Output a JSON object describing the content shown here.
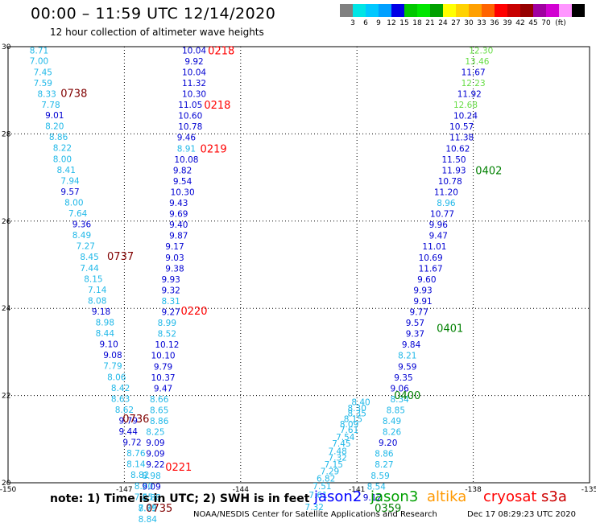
{
  "header": {
    "title": "00:00 – 11:59 UTC 12/14/2020",
    "subtitle": "12 hour collection of altimeter wave heights"
  },
  "colorbar": {
    "colors": [
      "#808080",
      "#00e5e5",
      "#00c8ff",
      "#00a0ff",
      "#0000e6",
      "#00c800",
      "#00e600",
      "#00a000",
      "#ffff00",
      "#ffd200",
      "#ffa000",
      "#ff6400",
      "#ff0000",
      "#c80000",
      "#960000",
      "#a000a0",
      "#d200d2",
      "#ff96ff",
      "#000000"
    ],
    "ticks": [
      "3",
      "6",
      "9",
      "12",
      "15",
      "18",
      "21",
      "24",
      "27",
      "30",
      "33",
      "36",
      "39",
      "42",
      "45",
      "70"
    ],
    "unit": "(ft)"
  },
  "footer": {
    "note": "note: 1) Time is in UTC; 2) SWH is in feet",
    "legend": [
      {
        "name": "jason2",
        "color": "#0000ff"
      },
      {
        "name": "jason3",
        "color": "#00a000"
      },
      {
        "name": "altika",
        "color": "#ff9900"
      },
      {
        "name": "cryosat",
        "color": "#ff0000"
      },
      {
        "name": "s3a",
        "color": "#cc0000"
      }
    ],
    "credit": "NOAA/NESDIS Center for Satellite Applications and Research",
    "timestamp": "Dec 17 08:29:23 UTC 2020"
  },
  "chart_data": {
    "type": "scatter",
    "title": "",
    "xlim": [
      -150,
      -135
    ],
    "ylim": [
      20,
      30
    ],
    "x_ticks": [
      "-150",
      "-147",
      "-144",
      "-141",
      "-138",
      "-135"
    ],
    "y_ticks": [
      "20",
      "22",
      "24",
      "26",
      "28",
      "30"
    ],
    "grid": true,
    "value_colors": [
      {
        "max": 9,
        "color": "#20b8e8"
      },
      {
        "max": 12,
        "color": "#0000d2"
      },
      {
        "max": 15,
        "color": "#66dd44"
      }
    ],
    "series": [
      {
        "track": "A",
        "points": [
          {
            "x": -149.2,
            "y": 29.92,
            "v": "8.71"
          },
          {
            "x": -149.2,
            "y": 29.68,
            "v": "7.00"
          },
          {
            "x": -149.1,
            "y": 29.42,
            "v": "7.45"
          },
          {
            "x": -149.1,
            "y": 29.17,
            "v": "7.59"
          },
          {
            "x": -149.0,
            "y": 28.92,
            "v": "8.33"
          },
          {
            "x": -148.9,
            "y": 28.67,
            "v": "7.78"
          },
          {
            "x": -148.8,
            "y": 28.43,
            "v": "9.01"
          },
          {
            "x": -148.8,
            "y": 28.18,
            "v": "8.20"
          },
          {
            "x": -148.7,
            "y": 27.93,
            "v": "8.86"
          },
          {
            "x": -148.6,
            "y": 27.68,
            "v": "8.22"
          },
          {
            "x": -148.6,
            "y": 27.43,
            "v": "8.00"
          },
          {
            "x": -148.5,
            "y": 27.18,
            "v": "8.41"
          },
          {
            "x": -148.4,
            "y": 26.93,
            "v": "7.94"
          },
          {
            "x": -148.4,
            "y": 26.68,
            "v": "9.57"
          },
          {
            "x": -148.3,
            "y": 26.43,
            "v": "8.00"
          },
          {
            "x": -148.2,
            "y": 26.18,
            "v": "7.64"
          },
          {
            "x": -148.1,
            "y": 25.93,
            "v": "9.36"
          },
          {
            "x": -148.1,
            "y": 25.68,
            "v": "8.49"
          },
          {
            "x": -148.0,
            "y": 25.43,
            "v": "7.27"
          },
          {
            "x": -147.9,
            "y": 25.18,
            "v": "8.45"
          },
          {
            "x": -147.9,
            "y": 24.93,
            "v": "7.44"
          },
          {
            "x": -147.8,
            "y": 24.68,
            "v": "8.15"
          },
          {
            "x": -147.7,
            "y": 24.43,
            "v": "7.14"
          },
          {
            "x": -147.7,
            "y": 24.18,
            "v": "8.08"
          },
          {
            "x": -147.6,
            "y": 23.93,
            "v": "9.18"
          },
          {
            "x": -147.5,
            "y": 23.68,
            "v": "8.98"
          },
          {
            "x": -147.5,
            "y": 23.43,
            "v": "8.44"
          },
          {
            "x": -147.4,
            "y": 23.18,
            "v": "9.10"
          },
          {
            "x": -147.3,
            "y": 22.93,
            "v": "9.08"
          },
          {
            "x": -147.3,
            "y": 22.68,
            "v": "7.79"
          },
          {
            "x": -147.2,
            "y": 22.43,
            "v": "8.06"
          },
          {
            "x": -147.1,
            "y": 22.18,
            "v": "8.42"
          },
          {
            "x": -147.1,
            "y": 21.93,
            "v": "8.63"
          },
          {
            "x": -147.0,
            "y": 21.68,
            "v": "8.62"
          },
          {
            "x": -146.9,
            "y": 21.43,
            "v": "9.79"
          },
          {
            "x": -146.9,
            "y": 21.18,
            "v": "9.44"
          },
          {
            "x": -146.8,
            "y": 20.93,
            "v": "9.72"
          },
          {
            "x": -146.7,
            "y": 20.68,
            "v": "8.76"
          },
          {
            "x": -146.7,
            "y": 20.43,
            "v": "8.14"
          },
          {
            "x": -146.6,
            "y": 20.18,
            "v": "8.82"
          },
          {
            "x": -146.5,
            "y": 19.93,
            "v": "8.80"
          },
          {
            "x": -146.5,
            "y": 19.68,
            "v": "7.55"
          },
          {
            "x": -146.4,
            "y": 19.43,
            "v": "7.75"
          }
        ]
      },
      {
        "track": "B",
        "points": [
          {
            "x": -145.2,
            "y": 29.92,
            "v": "10.04"
          },
          {
            "x": -145.2,
            "y": 29.67,
            "v": "9.92"
          },
          {
            "x": -145.2,
            "y": 29.42,
            "v": "10.04"
          },
          {
            "x": -145.2,
            "y": 29.17,
            "v": "11.32"
          },
          {
            "x": -145.2,
            "y": 28.92,
            "v": "10.30"
          },
          {
            "x": -145.3,
            "y": 28.67,
            "v": "11.05"
          },
          {
            "x": -145.3,
            "y": 28.42,
            "v": "10.60"
          },
          {
            "x": -145.3,
            "y": 28.17,
            "v": "10.78"
          },
          {
            "x": -145.4,
            "y": 27.92,
            "v": "9.46"
          },
          {
            "x": -145.4,
            "y": 27.67,
            "v": "8.91"
          },
          {
            "x": -145.4,
            "y": 27.42,
            "v": "10.08"
          },
          {
            "x": -145.5,
            "y": 27.17,
            "v": "9.82"
          },
          {
            "x": -145.5,
            "y": 26.92,
            "v": "9.54"
          },
          {
            "x": -145.5,
            "y": 26.67,
            "v": "10.30"
          },
          {
            "x": -145.6,
            "y": 26.42,
            "v": "9.43"
          },
          {
            "x": -145.6,
            "y": 26.17,
            "v": "9.69"
          },
          {
            "x": -145.6,
            "y": 25.92,
            "v": "9.40"
          },
          {
            "x": -145.6,
            "y": 25.67,
            "v": "9.87"
          },
          {
            "x": -145.7,
            "y": 25.42,
            "v": "9.17"
          },
          {
            "x": -145.7,
            "y": 25.17,
            "v": "9.03"
          },
          {
            "x": -145.7,
            "y": 24.92,
            "v": "9.38"
          },
          {
            "x": -145.8,
            "y": 24.67,
            "v": "9.93"
          },
          {
            "x": -145.8,
            "y": 24.42,
            "v": "9.32"
          },
          {
            "x": -145.8,
            "y": 24.17,
            "v": "8.31"
          },
          {
            "x": -145.8,
            "y": 23.92,
            "v": "9.27"
          },
          {
            "x": -145.9,
            "y": 23.67,
            "v": "8.99"
          },
          {
            "x": -145.9,
            "y": 23.42,
            "v": "8.52"
          },
          {
            "x": -145.9,
            "y": 23.17,
            "v": "10.12"
          },
          {
            "x": -146.0,
            "y": 22.92,
            "v": "10.10"
          },
          {
            "x": -146.0,
            "y": 22.67,
            "v": "9.79"
          },
          {
            "x": -146.0,
            "y": 22.42,
            "v": "10.37"
          },
          {
            "x": -146.0,
            "y": 22.17,
            "v": "9.47"
          },
          {
            "x": -146.1,
            "y": 21.92,
            "v": "8.66"
          },
          {
            "x": -146.1,
            "y": 21.67,
            "v": "8.65"
          },
          {
            "x": -146.1,
            "y": 21.42,
            "v": "8.86"
          },
          {
            "x": -146.2,
            "y": 21.17,
            "v": "8.25"
          },
          {
            "x": -146.2,
            "y": 20.92,
            "v": "9.09"
          },
          {
            "x": -146.2,
            "y": 20.67,
            "v": "9.09"
          },
          {
            "x": -146.2,
            "y": 20.42,
            "v": "9.22"
          },
          {
            "x": -146.3,
            "y": 20.17,
            "v": "8.98"
          },
          {
            "x": -146.3,
            "y": 19.92,
            "v": "9.09"
          },
          {
            "x": -146.3,
            "y": 19.67,
            "v": "8.88"
          },
          {
            "x": -146.4,
            "y": 19.42,
            "v": "8.69"
          },
          {
            "x": -146.4,
            "y": 19.17,
            "v": "8.84"
          }
        ]
      },
      {
        "track": "C",
        "points": [
          {
            "x": -137.8,
            "y": 29.92,
            "v": "12.30"
          },
          {
            "x": -137.9,
            "y": 29.67,
            "v": "13.46"
          },
          {
            "x": -138.0,
            "y": 29.42,
            "v": "11.67"
          },
          {
            "x": -138.0,
            "y": 29.17,
            "v": "12.23"
          },
          {
            "x": -138.1,
            "y": 28.92,
            "v": "11.92"
          },
          {
            "x": -138.2,
            "y": 28.67,
            "v": "12.68"
          },
          {
            "x": -138.2,
            "y": 28.42,
            "v": "10.24"
          },
          {
            "x": -138.3,
            "y": 28.17,
            "v": "10.57"
          },
          {
            "x": -138.3,
            "y": 27.92,
            "v": "11.38"
          },
          {
            "x": -138.4,
            "y": 27.67,
            "v": "10.62"
          },
          {
            "x": -138.5,
            "y": 27.42,
            "v": "11.50"
          },
          {
            "x": -138.5,
            "y": 27.17,
            "v": "11.93"
          },
          {
            "x": -138.6,
            "y": 26.92,
            "v": "10.78"
          },
          {
            "x": -138.7,
            "y": 26.67,
            "v": "11.20"
          },
          {
            "x": -138.7,
            "y": 26.42,
            "v": "8.96"
          },
          {
            "x": -138.8,
            "y": 26.17,
            "v": "10.77"
          },
          {
            "x": -138.9,
            "y": 25.92,
            "v": "9.96"
          },
          {
            "x": -138.9,
            "y": 25.67,
            "v": "9.47"
          },
          {
            "x": -139.0,
            "y": 25.42,
            "v": "11.01"
          },
          {
            "x": -139.1,
            "y": 25.17,
            "v": "10.69"
          },
          {
            "x": -139.1,
            "y": 24.92,
            "v": "11.67"
          },
          {
            "x": -139.2,
            "y": 24.67,
            "v": "9.60"
          },
          {
            "x": -139.3,
            "y": 24.42,
            "v": "9.93"
          },
          {
            "x": -139.3,
            "y": 24.17,
            "v": "9.91"
          },
          {
            "x": -139.4,
            "y": 23.92,
            "v": "9.77"
          },
          {
            "x": -139.5,
            "y": 23.67,
            "v": "9.57"
          },
          {
            "x": -139.5,
            "y": 23.42,
            "v": "9.37"
          },
          {
            "x": -139.6,
            "y": 23.17,
            "v": "9.84"
          },
          {
            "x": -139.7,
            "y": 22.92,
            "v": "8.21"
          },
          {
            "x": -139.7,
            "y": 22.67,
            "v": "9.59"
          },
          {
            "x": -139.8,
            "y": 22.42,
            "v": "9.35"
          },
          {
            "x": -139.9,
            "y": 22.17,
            "v": "9.06"
          },
          {
            "x": -139.9,
            "y": 21.92,
            "v": "8.34"
          },
          {
            "x": -140.0,
            "y": 21.67,
            "v": "8.85"
          },
          {
            "x": -140.1,
            "y": 21.42,
            "v": "8.49"
          },
          {
            "x": -140.1,
            "y": 21.17,
            "v": "8.26"
          },
          {
            "x": -140.2,
            "y": 20.92,
            "v": "9.20"
          },
          {
            "x": -140.3,
            "y": 20.67,
            "v": "8.86"
          },
          {
            "x": -140.3,
            "y": 20.42,
            "v": "8.27"
          },
          {
            "x": -140.4,
            "y": 20.17,
            "v": "8.59"
          },
          {
            "x": -140.5,
            "y": 19.92,
            "v": "8.54"
          },
          {
            "x": -140.6,
            "y": 19.67,
            "v": "9.12"
          }
        ]
      },
      {
        "track": "D",
        "points": [
          {
            "x": -140.9,
            "y": 21.85,
            "v": "8.40"
          },
          {
            "x": -141.0,
            "y": 21.72,
            "v": "8.30"
          },
          {
            "x": -141.0,
            "y": 21.6,
            "v": "8.35"
          },
          {
            "x": -141.1,
            "y": 21.47,
            "v": "8.15"
          },
          {
            "x": -141.2,
            "y": 21.35,
            "v": "8.09"
          },
          {
            "x": -141.2,
            "y": 21.22,
            "v": "7.61"
          },
          {
            "x": -141.3,
            "y": 21.05,
            "v": "7.54"
          },
          {
            "x": -141.4,
            "y": 20.9,
            "v": "7.45"
          },
          {
            "x": -141.5,
            "y": 20.73,
            "v": "7.48"
          },
          {
            "x": -141.5,
            "y": 20.58,
            "v": "7.32"
          },
          {
            "x": -141.6,
            "y": 20.42,
            "v": "7.15"
          },
          {
            "x": -141.7,
            "y": 20.27,
            "v": "7.29"
          },
          {
            "x": -141.8,
            "y": 20.1,
            "v": "6.82"
          },
          {
            "x": -141.9,
            "y": 19.93,
            "v": "7.51"
          },
          {
            "x": -142.0,
            "y": 19.72,
            "v": "7.61"
          },
          {
            "x": -142.1,
            "y": 19.45,
            "v": "7.32"
          }
        ]
      }
    ],
    "time_labels": [
      {
        "x": -148.3,
        "y": 28.94,
        "t": "0738",
        "color": "#800000"
      },
      {
        "x": -147.1,
        "y": 25.2,
        "t": "0737",
        "color": "#800000"
      },
      {
        "x": -146.7,
        "y": 21.48,
        "t": "0736",
        "color": "#800000"
      },
      {
        "x": -146.1,
        "y": 19.43,
        "t": "0735",
        "color": "#800000"
      },
      {
        "x": -144.5,
        "y": 29.92,
        "t": "0218",
        "color": "#ff0000"
      },
      {
        "x": -144.6,
        "y": 28.67,
        "t": "0218",
        "color": "#ff0000"
      },
      {
        "x": -144.7,
        "y": 27.67,
        "t": "0219",
        "color": "#ff0000"
      },
      {
        "x": -145.2,
        "y": 23.95,
        "t": "0220",
        "color": "#ff0000"
      },
      {
        "x": -145.6,
        "y": 20.37,
        "t": "0221",
        "color": "#ff0000"
      },
      {
        "x": -137.6,
        "y": 27.17,
        "t": "0402",
        "color": "#008000"
      },
      {
        "x": -138.6,
        "y": 23.55,
        "t": "0401",
        "color": "#008000"
      },
      {
        "x": -139.7,
        "y": 22.01,
        "t": "0400",
        "color": "#008000"
      },
      {
        "x": -140.2,
        "y": 19.43,
        "t": "0359",
        "color": "#008000"
      }
    ]
  }
}
